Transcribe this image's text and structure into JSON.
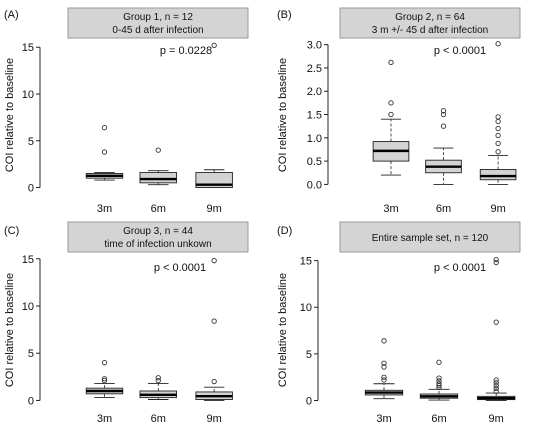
{
  "chart_data": [
    {
      "type": "box",
      "panel_label": "(A)",
      "title_line1": "Group 1, n = 12",
      "title_line2": "0-45 d after infection",
      "ylabel": "COI relative to baseline",
      "categories": [
        "3m",
        "6m",
        "9m"
      ],
      "ylim": [
        -0.8,
        16.2
      ],
      "yticks": [
        0,
        5,
        10,
        15
      ],
      "annotation": "p = 0.0228",
      "boxes": [
        {
          "min": 0.8,
          "q1": 1.0,
          "median": 1.25,
          "q3": 1.5,
          "max": 1.6,
          "outliers": [
            3.8,
            6.4
          ]
        },
        {
          "min": 0.3,
          "q1": 0.5,
          "median": 0.9,
          "q3": 1.6,
          "max": 1.8,
          "outliers": [
            4.0
          ]
        },
        {
          "min": 0.0,
          "q1": 0.0,
          "median": 0.3,
          "q3": 1.6,
          "max": 1.9,
          "outliers": [
            15.2
          ]
        }
      ]
    },
    {
      "type": "box",
      "panel_label": "(B)",
      "title_line1": "Group 2, n = 64",
      "title_line2": "3 m +/- 45 d after infection",
      "ylabel": "COI relative to baseline",
      "categories": [
        "3m",
        "6m",
        "9m"
      ],
      "ylim": [
        -0.12,
        3.1
      ],
      "yticks": [
        0.0,
        0.5,
        1.0,
        1.5,
        2.0,
        2.5,
        3.0
      ],
      "tick_decimals": 1,
      "annotation": "p < 0.0001",
      "boxes": [
        {
          "min": 0.2,
          "q1": 0.5,
          "median": 0.72,
          "q3": 0.92,
          "max": 1.4,
          "outliers": [
            1.5,
            1.75,
            2.62
          ]
        },
        {
          "min": 0.0,
          "q1": 0.25,
          "median": 0.38,
          "q3": 0.52,
          "max": 0.78,
          "outliers": [
            1.25,
            1.5,
            1.58
          ]
        },
        {
          "min": 0.0,
          "q1": 0.1,
          "median": 0.18,
          "q3": 0.32,
          "max": 0.62,
          "outliers": [
            0.7,
            0.88,
            1.05,
            1.2,
            1.35,
            1.45,
            3.02
          ]
        }
      ]
    },
    {
      "type": "box",
      "panel_label": "(C)",
      "title_line1": "Group 3, n = 44",
      "title_line2": "time of infection unkown",
      "ylabel": "COI relative to baseline",
      "categories": [
        "3m",
        "6m",
        "9m"
      ],
      "ylim": [
        -0.8,
        15.4
      ],
      "yticks": [
        0,
        5,
        10,
        15
      ],
      "annotation": "p < 0.0001",
      "boxes": [
        {
          "min": 0.3,
          "q1": 0.7,
          "median": 1.0,
          "q3": 1.3,
          "max": 1.8,
          "outliers": [
            2.1,
            2.3,
            4.0
          ]
        },
        {
          "min": 0.1,
          "q1": 0.3,
          "median": 0.6,
          "q3": 1.0,
          "max": 1.8,
          "outliers": [
            2.1,
            2.4
          ]
        },
        {
          "min": 0.0,
          "q1": 0.1,
          "median": 0.45,
          "q3": 0.9,
          "max": 1.4,
          "outliers": [
            2.0,
            8.4,
            14.8
          ]
        }
      ]
    },
    {
      "type": "box",
      "panel_label": "(D)",
      "title_line1": "Entire sample set, n = 120",
      "title_line2": "",
      "ylabel": "COI relative to baseline",
      "categories": [
        "3m",
        "6m",
        "9m"
      ],
      "ylim": [
        -0.8,
        15.6
      ],
      "yticks": [
        0,
        5,
        10,
        15
      ],
      "annotation": "p < 0.0001",
      "boxes": [
        {
          "min": 0.2,
          "q1": 0.6,
          "median": 0.85,
          "q3": 1.1,
          "max": 1.8,
          "outliers": [
            2.2,
            2.5,
            3.6,
            4.0,
            6.4
          ]
        },
        {
          "min": 0.05,
          "q1": 0.25,
          "median": 0.45,
          "q3": 0.7,
          "max": 1.2,
          "outliers": [
            1.4,
            1.6,
            1.8,
            2.1,
            2.4,
            4.1
          ]
        },
        {
          "min": 0.0,
          "q1": 0.1,
          "median": 0.25,
          "q3": 0.45,
          "max": 0.8,
          "outliers": [
            1.0,
            1.3,
            1.6,
            1.9,
            2.2,
            8.4,
            14.8,
            15.1
          ]
        }
      ]
    }
  ]
}
